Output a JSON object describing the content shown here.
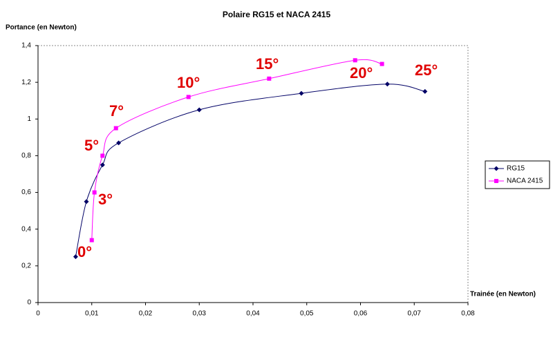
{
  "chart_data": {
    "type": "scatter",
    "title": "Polaire RG15 et NACA 2415",
    "x_label": "Trainée (en Newton)",
    "y_label": "Portance (en Newton)",
    "series": [
      {
        "name": "RG15",
        "color": "#000066",
        "marker": "diamond",
        "x": [
          0.007,
          0.009,
          0.012,
          0.015,
          0.03,
          0.049,
          0.065,
          0.072
        ],
        "values": [
          0.25,
          0.55,
          0.75,
          0.87,
          1.05,
          1.14,
          1.19,
          1.15
        ]
      },
      {
        "name": "NACA 2415",
        "color": "#ff00ff",
        "marker": "square",
        "x": [
          0.01,
          0.0105,
          0.012,
          0.0145,
          0.028,
          0.043,
          0.059,
          0.064
        ],
        "values": [
          0.34,
          0.6,
          0.8,
          0.95,
          1.12,
          1.22,
          1.32,
          1.3
        ]
      }
    ],
    "annotations": [
      "0°",
      "3°",
      "5°",
      "7°",
      "10°",
      "15°",
      "20°",
      "25°"
    ],
    "xlim": [
      0,
      0.08
    ],
    "xticks": [
      0,
      {
        "value": 0.01,
        "label": "0,01"
      },
      {
        "value": 0.02,
        "label": "0,02"
      },
      {
        "value": 0.03,
        "label": "0,03"
      },
      {
        "value": 0.04,
        "label": "0,04"
      },
      {
        "value": 0.05,
        "label": "0,05"
      },
      {
        "value": 0.06,
        "label": "0,06"
      },
      {
        "value": 0.07,
        "label": "0,07"
      },
      {
        "value": 0.08,
        "label": "0,08"
      }
    ],
    "ylim": [
      0,
      1.4
    ],
    "yticks": [
      0,
      {
        "value": 0.2,
        "label": "0,2"
      },
      {
        "value": 0.4,
        "label": "0,4"
      },
      {
        "value": 0.6,
        "label": "0,6"
      },
      {
        "value": 0.8,
        "label": "0,8"
      },
      1,
      {
        "value": 1.2,
        "label": "1,2"
      },
      {
        "value": 1.4,
        "label": "1,4"
      }
    ],
    "grid": false,
    "legend": "right"
  }
}
